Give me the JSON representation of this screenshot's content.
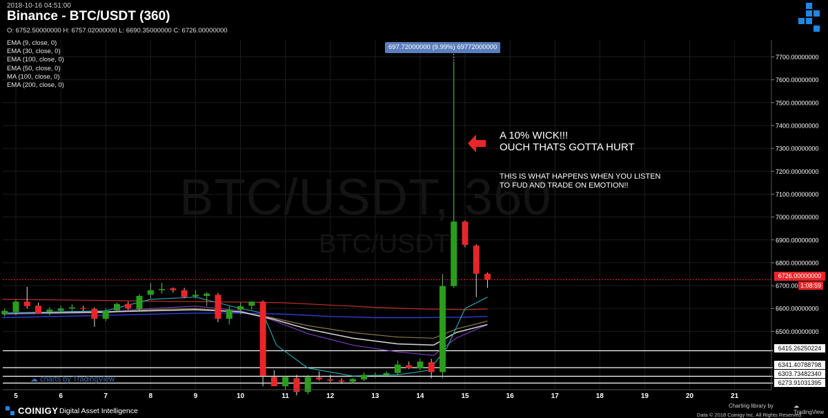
{
  "header": {
    "timestamp": "2018-10-16 04:51:00",
    "title": "Binance - BTC/USDT (360)",
    "ohlc": "O: 6752.50000000 H: 6757.02000000 L: 6690.35000000 C: 6726.00000000"
  },
  "indicators": [
    "EMA (9, close, 0)",
    "EMA (30, close, 0)",
    "EMA (100, close, 0)",
    "EMA (50, close, 0)",
    "MA (100, close, 0)",
    "EMA (200, close, 0)"
  ],
  "watermark": {
    "big": "BTC/USDT, 360",
    "small": "BTC/USDT",
    "tv": "charts by TradingView"
  },
  "annotations": {
    "wick_tooltip": "697.72000000 (9.99%) 69772000000",
    "headline_1": "A 10% WICK!!!",
    "headline_2": "OUCH THATS GOTTA HURT",
    "body_1": "THIS IS WHAT HAPPENS WHEN YOU LISTEN",
    "body_2": "TO FUD AND TRADE ON EMOTION!!"
  },
  "footer": {
    "brand": "COINIGY",
    "tagline": "Digital Asset Intelligence",
    "charting": "Charting library by",
    "tv": "TradingView",
    "copyright": "Data © 2018   Coinigy Inc. All Rights Reserved"
  },
  "colors": {
    "up": "#2a9d1c",
    "down": "#e8262a",
    "bg": "#000000",
    "accent": "#5b7fbd"
  },
  "chart_data": {
    "type": "candlestick",
    "ylim": [
      6250,
      7780
    ],
    "xlim": [
      4.7,
      21.8
    ],
    "x_ticks": [
      5,
      6,
      7,
      8,
      9,
      10,
      11,
      12,
      13,
      14,
      15,
      16,
      17,
      18,
      19,
      20,
      21
    ],
    "y_ticks": [
      6500,
      6600,
      6700,
      6800,
      6900,
      7000,
      7100,
      7200,
      7300,
      7400,
      7500,
      7600,
      7700
    ],
    "y_tick_labels": [
      "6500.00000000",
      "6600.00000000",
      "6700.00000000",
      "6800.00000000",
      "6900.00000000",
      "7000.00000000",
      "7100.00000000",
      "7200.00000000",
      "7300.00000000",
      "7400.00000000",
      "7500.00000000",
      "7600.00000000",
      "7700.00000000"
    ],
    "last_price": 6726,
    "last_price_label": "6726.00000000",
    "timer": "1:08:59",
    "levels": [
      {
        "value": 6415.26250224,
        "label": "6415.26250224"
      },
      {
        "value": 6341.40788798,
        "label": "6341.40788798"
      },
      {
        "value": 6303.7348234,
        "label": "6303.73482340"
      },
      {
        "value": 6273.91031395,
        "label": "6273.91031395"
      }
    ],
    "candles": [
      {
        "x": 4.75,
        "o": 6575,
        "h": 6600,
        "l": 6565,
        "c": 6590
      },
      {
        "x": 5.0,
        "o": 6585,
        "h": 6640,
        "l": 6570,
        "c": 6630
      },
      {
        "x": 5.25,
        "o": 6630,
        "h": 6695,
        "l": 6600,
        "c": 6610
      },
      {
        "x": 5.5,
        "o": 6612,
        "h": 6625,
        "l": 6580,
        "c": 6578
      },
      {
        "x": 5.75,
        "o": 6585,
        "h": 6605,
        "l": 6570,
        "c": 6595
      },
      {
        "x": 6.0,
        "o": 6590,
        "h": 6612,
        "l": 6578,
        "c": 6600
      },
      {
        "x": 6.25,
        "o": 6600,
        "h": 6618,
        "l": 6590,
        "c": 6605
      },
      {
        "x": 6.5,
        "o": 6602,
        "h": 6612,
        "l": 6590,
        "c": 6598
      },
      {
        "x": 6.75,
        "o": 6598,
        "h": 6605,
        "l": 6520,
        "c": 6555
      },
      {
        "x": 7.0,
        "o": 6555,
        "h": 6600,
        "l": 6545,
        "c": 6590
      },
      {
        "x": 7.25,
        "o": 6592,
        "h": 6625,
        "l": 6585,
        "c": 6620
      },
      {
        "x": 7.5,
        "o": 6620,
        "h": 6630,
        "l": 6595,
        "c": 6600
      },
      {
        "x": 7.75,
        "o": 6598,
        "h": 6662,
        "l": 6590,
        "c": 6655
      },
      {
        "x": 8.0,
        "o": 6660,
        "h": 6712,
        "l": 6645,
        "c": 6680
      },
      {
        "x": 8.25,
        "o": 6680,
        "h": 6712,
        "l": 6665,
        "c": 6685
      },
      {
        "x": 8.5,
        "o": 6688,
        "h": 6692,
        "l": 6670,
        "c": 6680
      },
      {
        "x": 8.75,
        "o": 6680,
        "h": 6690,
        "l": 6645,
        "c": 6650
      },
      {
        "x": 9.0,
        "o": 6653,
        "h": 6680,
        "l": 6645,
        "c": 6660
      },
      {
        "x": 9.25,
        "o": 6655,
        "h": 6672,
        "l": 6610,
        "c": 6665
      },
      {
        "x": 9.5,
        "o": 6660,
        "h": 6668,
        "l": 6540,
        "c": 6555
      },
      {
        "x": 9.75,
        "o": 6555,
        "h": 6610,
        "l": 6530,
        "c": 6595
      },
      {
        "x": 10.0,
        "o": 6595,
        "h": 6625,
        "l": 6575,
        "c": 6610
      },
      {
        "x": 10.25,
        "o": 6612,
        "h": 6632,
        "l": 6595,
        "c": 6630
      },
      {
        "x": 10.5,
        "o": 6630,
        "h": 6635,
        "l": 6260,
        "c": 6305
      },
      {
        "x": 10.75,
        "o": 6300,
        "h": 6330,
        "l": 6260,
        "c": 6260
      },
      {
        "x": 11.0,
        "o": 6260,
        "h": 6305,
        "l": 6245,
        "c": 6300
      },
      {
        "x": 11.25,
        "o": 6295,
        "h": 6310,
        "l": 6220,
        "c": 6235
      },
      {
        "x": 11.5,
        "o": 6235,
        "h": 6310,
        "l": 6225,
        "c": 6300
      },
      {
        "x": 11.75,
        "o": 6298,
        "h": 6325,
        "l": 6285,
        "c": 6290
      },
      {
        "x": 12.0,
        "o": 6290,
        "h": 6310,
        "l": 6278,
        "c": 6285
      },
      {
        "x": 12.25,
        "o": 6285,
        "h": 6295,
        "l": 6270,
        "c": 6280
      },
      {
        "x": 12.5,
        "o": 6280,
        "h": 6295,
        "l": 6272,
        "c": 6292
      },
      {
        "x": 12.75,
        "o": 6290,
        "h": 6320,
        "l": 6282,
        "c": 6310
      },
      {
        "x": 13.0,
        "o": 6308,
        "h": 6320,
        "l": 6298,
        "c": 6310
      },
      {
        "x": 13.25,
        "o": 6310,
        "h": 6325,
        "l": 6300,
        "c": 6318
      },
      {
        "x": 13.5,
        "o": 6318,
        "h": 6372,
        "l": 6310,
        "c": 6355
      },
      {
        "x": 13.75,
        "o": 6352,
        "h": 6368,
        "l": 6335,
        "c": 6340
      },
      {
        "x": 14.0,
        "o": 6338,
        "h": 6380,
        "l": 6330,
        "c": 6368
      },
      {
        "x": 14.25,
        "o": 6365,
        "h": 6380,
        "l": 6295,
        "c": 6322
      },
      {
        "x": 14.5,
        "o": 6322,
        "h": 6750,
        "l": 6295,
        "c": 6698
      },
      {
        "x": 14.75,
        "o": 6698,
        "h": 7680,
        "l": 6690,
        "c": 6980
      },
      {
        "x": 15.0,
        "o": 6980,
        "h": 6985,
        "l": 6868,
        "c": 6878
      },
      {
        "x": 15.25,
        "o": 6875,
        "h": 6880,
        "l": 6650,
        "c": 6752
      },
      {
        "x": 15.5,
        "o": 6752,
        "h": 6757,
        "l": 6690,
        "c": 6726
      }
    ],
    "ema9": [
      [
        4.7,
        6580
      ],
      [
        7,
        6590
      ],
      [
        8,
        6640
      ],
      [
        9,
        6650
      ],
      [
        10,
        6600
      ],
      [
        10.5,
        6580
      ],
      [
        10.8,
        6440
      ],
      [
        11.5,
        6340
      ],
      [
        12.5,
        6305
      ],
      [
        13.5,
        6310
      ],
      [
        14.2,
        6330
      ],
      [
        14.6,
        6430
      ],
      [
        15,
        6600
      ],
      [
        15.5,
        6650
      ]
    ],
    "ema30": [
      [
        4.7,
        6575
      ],
      [
        7,
        6585
      ],
      [
        8,
        6600
      ],
      [
        9,
        6610
      ],
      [
        10,
        6590
      ],
      [
        10.7,
        6550
      ],
      [
        11.5,
        6490
      ],
      [
        12.5,
        6440
      ],
      [
        13.5,
        6410
      ],
      [
        14.3,
        6395
      ],
      [
        14.8,
        6470
      ],
      [
        15.5,
        6530
      ]
    ],
    "ema50": [
      [
        4.7,
        6575
      ],
      [
        7,
        6582
      ],
      [
        8,
        6595
      ],
      [
        9,
        6600
      ],
      [
        10,
        6585
      ],
      [
        10.7,
        6560
      ],
      [
        11.5,
        6525
      ],
      [
        12.5,
        6495
      ],
      [
        13.5,
        6475
      ],
      [
        14.3,
        6470
      ],
      [
        14.8,
        6510
      ],
      [
        15.5,
        6545
      ]
    ],
    "ma100": [
      [
        4.7,
        6580
      ],
      [
        7,
        6585
      ],
      [
        8,
        6590
      ],
      [
        9,
        6595
      ],
      [
        10,
        6585
      ],
      [
        10.7,
        6555
      ],
      [
        11.5,
        6510
      ],
      [
        12.5,
        6470
      ],
      [
        13.5,
        6445
      ],
      [
        14.3,
        6440
      ],
      [
        14.8,
        6495
      ],
      [
        15.5,
        6530
      ]
    ],
    "ema100": [
      [
        4.7,
        6560
      ],
      [
        7,
        6570
      ],
      [
        8,
        6575
      ],
      [
        9,
        6580
      ],
      [
        10,
        6580
      ],
      [
        11,
        6575
      ],
      [
        12,
        6565
      ],
      [
        13,
        6560
      ],
      [
        14,
        6560
      ],
      [
        15,
        6562
      ],
      [
        15.5,
        6565
      ]
    ],
    "ema200": [
      [
        4.7,
        6640
      ],
      [
        7,
        6635
      ],
      [
        8,
        6632
      ],
      [
        9,
        6630
      ],
      [
        10,
        6628
      ],
      [
        11,
        6625
      ],
      [
        12,
        6615
      ],
      [
        13,
        6605
      ],
      [
        14,
        6598
      ],
      [
        15,
        6595
      ],
      [
        15.5,
        6598
      ]
    ]
  }
}
